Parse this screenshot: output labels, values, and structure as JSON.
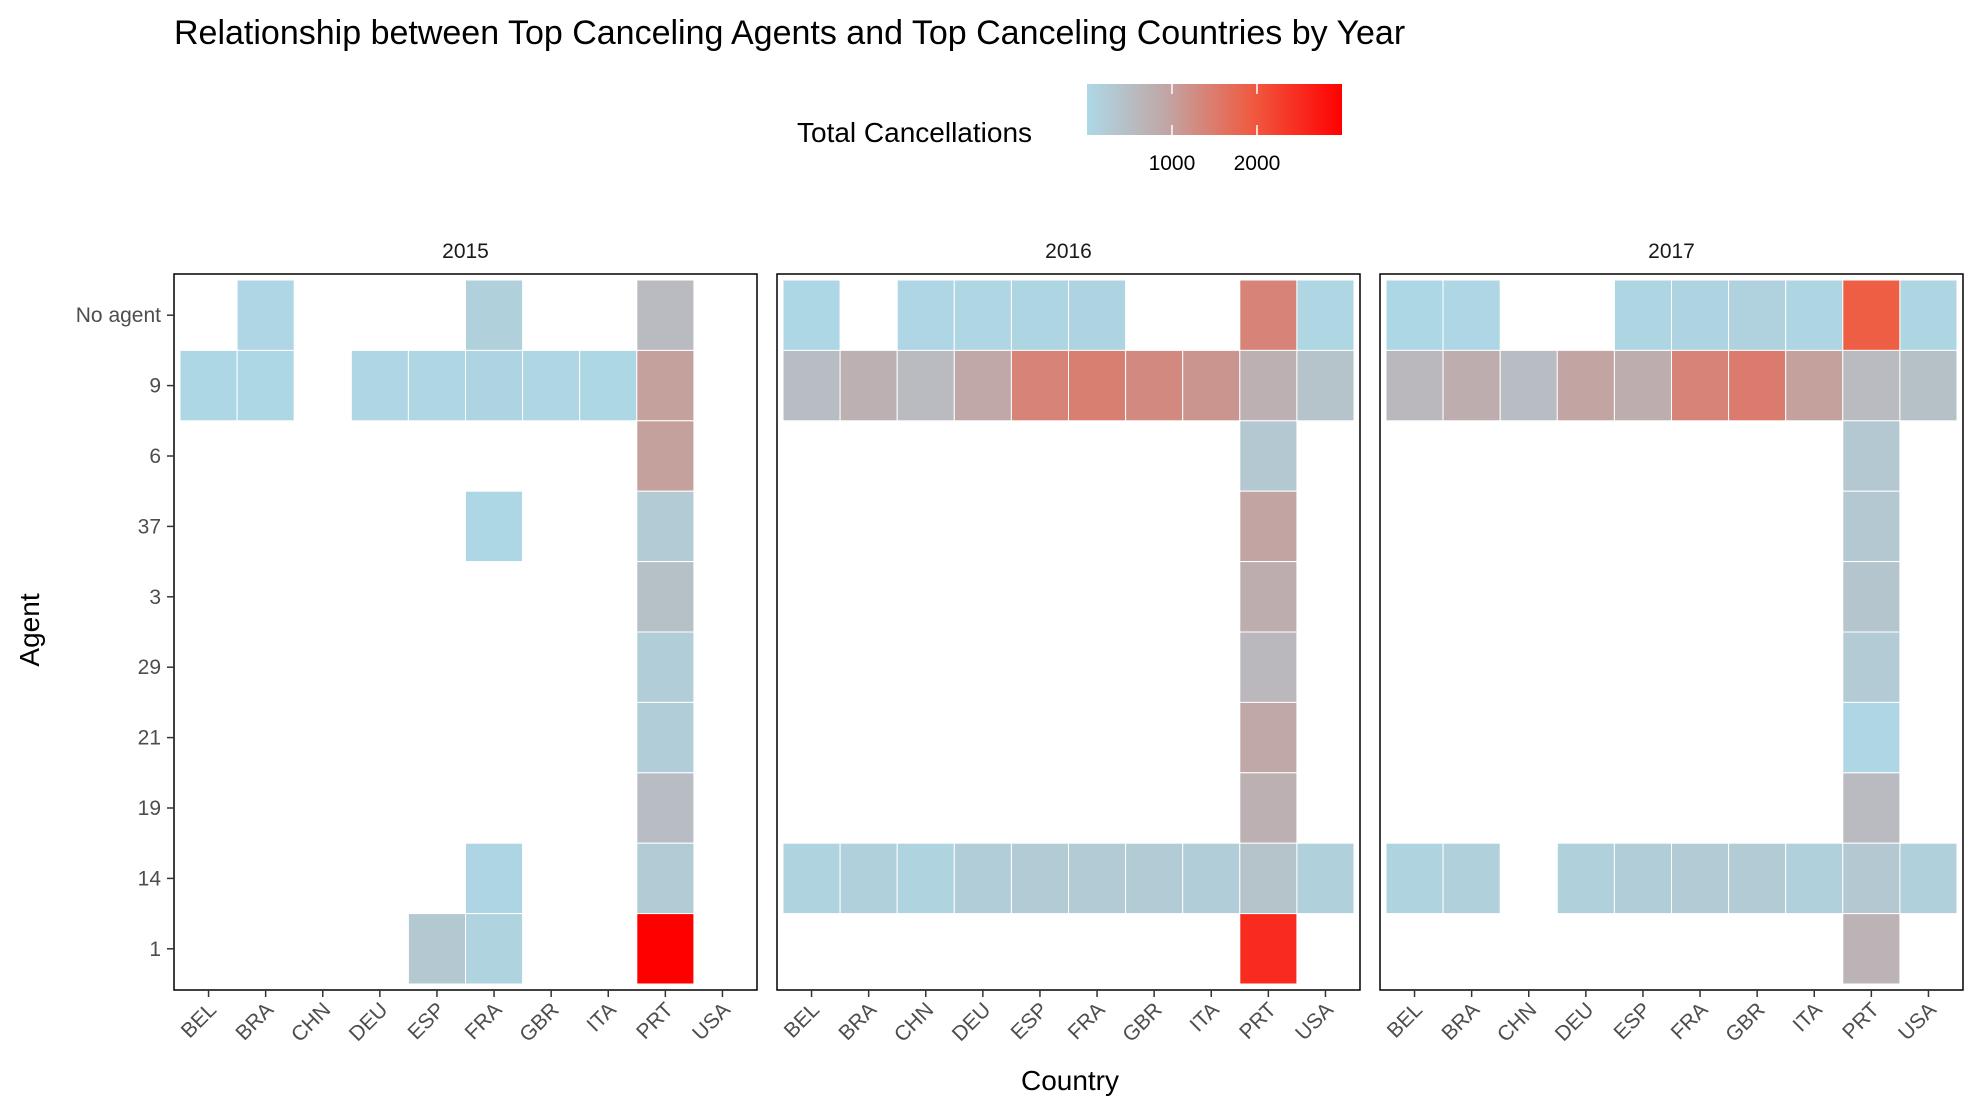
{
  "chart_data": {
    "type": "heatmap",
    "title": "Relationship between Top Canceling Agents and Top Canceling Countries by Year",
    "xlabel": "Country",
    "ylabel": "Agent",
    "legend": {
      "title": "Total Cancellations",
      "placement": "top",
      "ticks": [
        "1000",
        "2000"
      ],
      "tick_values": [
        1000,
        2000
      ],
      "range": [
        1,
        3000
      ],
      "colors": {
        "low": "#add8e6",
        "mid": "#c0a8a8",
        "high": "#ff0000"
      }
    },
    "x_categories": [
      "BEL",
      "BRA",
      "CHN",
      "DEU",
      "ESP",
      "FRA",
      "GBR",
      "ITA",
      "PRT",
      "USA"
    ],
    "y_categories": [
      "No agent",
      "9",
      "6",
      "37",
      "3",
      "29",
      "21",
      "19",
      "14",
      "1"
    ],
    "grid": false,
    "facets": [
      {
        "label": "2015",
        "cells": [
          {
            "x": "BRA",
            "y": "No agent",
            "value": 30
          },
          {
            "x": "FRA",
            "y": "No agent",
            "value": 150
          },
          {
            "x": "PRT",
            "y": "No agent",
            "value": 550
          },
          {
            "x": "BEL",
            "y": "9",
            "value": 20
          },
          {
            "x": "BRA",
            "y": "9",
            "value": 20
          },
          {
            "x": "DEU",
            "y": "9",
            "value": 30
          },
          {
            "x": "ESP",
            "y": "9",
            "value": 40
          },
          {
            "x": "FRA",
            "y": "9",
            "value": 80
          },
          {
            "x": "GBR",
            "y": "9",
            "value": 40
          },
          {
            "x": "ITA",
            "y": "9",
            "value": 20
          },
          {
            "x": "PRT",
            "y": "9",
            "value": 1000
          },
          {
            "x": "PRT",
            "y": "6",
            "value": 1000
          },
          {
            "x": "FRA",
            "y": "37",
            "value": 20
          },
          {
            "x": "PRT",
            "y": "37",
            "value": 250
          },
          {
            "x": "PRT",
            "y": "3",
            "value": 450
          },
          {
            "x": "PRT",
            "y": "29",
            "value": 200
          },
          {
            "x": "PRT",
            "y": "21",
            "value": 200
          },
          {
            "x": "PRT",
            "y": "19",
            "value": 500
          },
          {
            "x": "FRA",
            "y": "14",
            "value": 50
          },
          {
            "x": "PRT",
            "y": "14",
            "value": 250
          },
          {
            "x": "ESP",
            "y": "1",
            "value": 300
          },
          {
            "x": "FRA",
            "y": "1",
            "value": 100
          },
          {
            "x": "PRT",
            "y": "1",
            "value": 3000
          }
        ]
      },
      {
        "label": "2016",
        "cells": [
          {
            "x": "BEL",
            "y": "No agent",
            "value": 20
          },
          {
            "x": "CHN",
            "y": "No agent",
            "value": 30
          },
          {
            "x": "DEU",
            "y": "No agent",
            "value": 40
          },
          {
            "x": "ESP",
            "y": "No agent",
            "value": 60
          },
          {
            "x": "FRA",
            "y": "No agent",
            "value": 80
          },
          {
            "x": "PRT",
            "y": "No agent",
            "value": 1400
          },
          {
            "x": "USA",
            "y": "No agent",
            "value": 40
          },
          {
            "x": "BEL",
            "y": "9",
            "value": 500
          },
          {
            "x": "BRA",
            "y": "9",
            "value": 750
          },
          {
            "x": "CHN",
            "y": "9",
            "value": 550
          },
          {
            "x": "DEU",
            "y": "9",
            "value": 900
          },
          {
            "x": "ESP",
            "y": "9",
            "value": 1400
          },
          {
            "x": "FRA",
            "y": "9",
            "value": 1450
          },
          {
            "x": "GBR",
            "y": "9",
            "value": 1300
          },
          {
            "x": "ITA",
            "y": "9",
            "value": 1150
          },
          {
            "x": "PRT",
            "y": "9",
            "value": 750
          },
          {
            "x": "USA",
            "y": "9",
            "value": 400
          },
          {
            "x": "PRT",
            "y": "6",
            "value": 300
          },
          {
            "x": "PRT",
            "y": "37",
            "value": 950
          },
          {
            "x": "PRT",
            "y": "3",
            "value": 800
          },
          {
            "x": "PRT",
            "y": "29",
            "value": 600
          },
          {
            "x": "PRT",
            "y": "21",
            "value": 900
          },
          {
            "x": "PRT",
            "y": "19",
            "value": 750
          },
          {
            "x": "BEL",
            "y": "14",
            "value": 100
          },
          {
            "x": "BRA",
            "y": "14",
            "value": 150
          },
          {
            "x": "CHN",
            "y": "14",
            "value": 100
          },
          {
            "x": "DEU",
            "y": "14",
            "value": 200
          },
          {
            "x": "ESP",
            "y": "14",
            "value": 250
          },
          {
            "x": "FRA",
            "y": "14",
            "value": 250
          },
          {
            "x": "GBR",
            "y": "14",
            "value": 250
          },
          {
            "x": "ITA",
            "y": "14",
            "value": 200
          },
          {
            "x": "PRT",
            "y": "14",
            "value": 400
          },
          {
            "x": "USA",
            "y": "14",
            "value": 150
          },
          {
            "x": "PRT",
            "y": "1",
            "value": 2500
          }
        ]
      },
      {
        "label": "2017",
        "cells": [
          {
            "x": "BEL",
            "y": "No agent",
            "value": 20
          },
          {
            "x": "BRA",
            "y": "No agent",
            "value": 30
          },
          {
            "x": "ESP",
            "y": "No agent",
            "value": 60
          },
          {
            "x": "FRA",
            "y": "No agent",
            "value": 80
          },
          {
            "x": "GBR",
            "y": "No agent",
            "value": 120
          },
          {
            "x": "ITA",
            "y": "No agent",
            "value": 60
          },
          {
            "x": "PRT",
            "y": "No agent",
            "value": 1900
          },
          {
            "x": "USA",
            "y": "No agent",
            "value": 60
          },
          {
            "x": "BEL",
            "y": "9",
            "value": 600
          },
          {
            "x": "BRA",
            "y": "9",
            "value": 800
          },
          {
            "x": "CHN",
            "y": "9",
            "value": 500
          },
          {
            "x": "DEU",
            "y": "9",
            "value": 950
          },
          {
            "x": "ESP",
            "y": "9",
            "value": 800
          },
          {
            "x": "FRA",
            "y": "9",
            "value": 1400
          },
          {
            "x": "GBR",
            "y": "9",
            "value": 1500
          },
          {
            "x": "ITA",
            "y": "9",
            "value": 1000
          },
          {
            "x": "PRT",
            "y": "9",
            "value": 550
          },
          {
            "x": "USA",
            "y": "9",
            "value": 450
          },
          {
            "x": "PRT",
            "y": "6",
            "value": 300
          },
          {
            "x": "PRT",
            "y": "37",
            "value": 300
          },
          {
            "x": "PRT",
            "y": "3",
            "value": 350
          },
          {
            "x": "PRT",
            "y": "29",
            "value": 250
          },
          {
            "x": "PRT",
            "y": "21",
            "value": 30
          },
          {
            "x": "PRT",
            "y": "19",
            "value": 550
          },
          {
            "x": "BEL",
            "y": "14",
            "value": 100
          },
          {
            "x": "BRA",
            "y": "14",
            "value": 150
          },
          {
            "x": "DEU",
            "y": "14",
            "value": 150
          },
          {
            "x": "ESP",
            "y": "14",
            "value": 200
          },
          {
            "x": "FRA",
            "y": "14",
            "value": 250
          },
          {
            "x": "GBR",
            "y": "14",
            "value": 250
          },
          {
            "x": "ITA",
            "y": "14",
            "value": 150
          },
          {
            "x": "PRT",
            "y": "14",
            "value": 300
          },
          {
            "x": "USA",
            "y": "14",
            "value": 150
          },
          {
            "x": "PRT",
            "y": "1",
            "value": 700
          }
        ]
      }
    ]
  }
}
